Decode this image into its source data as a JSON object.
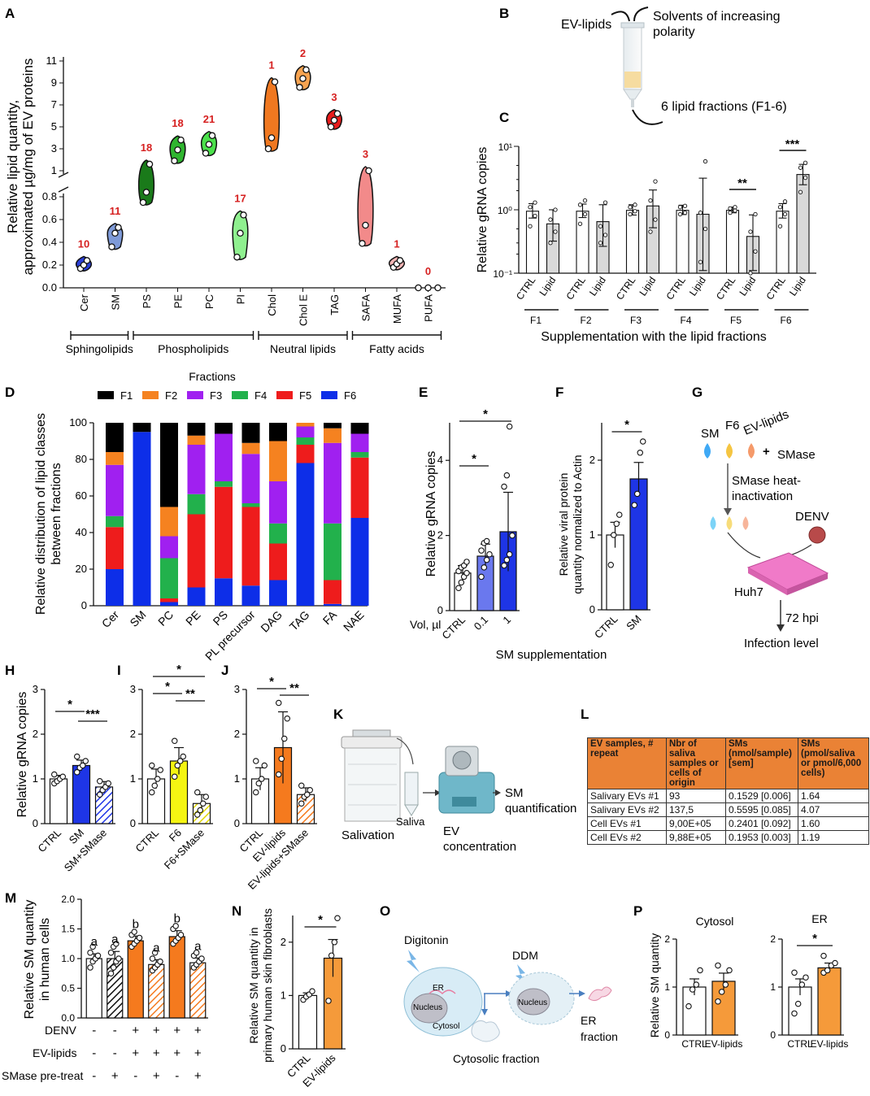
{
  "panel_letters": [
    "A",
    "B",
    "C",
    "D",
    "E",
    "F",
    "G",
    "H",
    "I",
    "J",
    "K",
    "L",
    "M",
    "N",
    "O",
    "P"
  ],
  "colors": {
    "F1": "#000000",
    "F2": "#f58220",
    "F3": "#a020f0",
    "F4": "#22b14c",
    "F5": "#ee1c1c",
    "F6": "#0d2ee8",
    "ctrl": "#ffffff",
    "sm": "#1e35e6",
    "f6": "#f5f512",
    "evlipids": "#f57a1e",
    "grey": "#d9d9d9"
  },
  "panelA": {
    "ylabel": "Relative lipid quantity, approximated µg/mg of EV proteins",
    "yticks_low": [
      "0.0",
      "0.2",
      "0.4",
      "0.6",
      "0.8"
    ],
    "yticks_high": [
      "1",
      "3",
      "5",
      "7",
      "9",
      "11"
    ],
    "groups": [
      {
        "label": "Sphingolipids",
        "n": 2
      },
      {
        "label": "Phospholipids",
        "n": 4
      },
      {
        "label": "Neutral lipids",
        "n": 3
      },
      {
        "label": "Fatty acids",
        "n": 3
      }
    ]
  },
  "panelB": {
    "ev_lipids": "EV-lipids",
    "solvents": "Solvents of increasing polarity",
    "fractions": "6 lipid fractions (F1-6)"
  },
  "panelC": {
    "ylabel": "Relative gRNA copies",
    "yticks": [
      "10⁻¹",
      "10⁰",
      "10¹"
    ],
    "xlabel": "Supplementation with the lipid fractions",
    "bar_labels": [
      "CTRL",
      "Lipid"
    ],
    "significance": [
      {
        "fraction": "F5",
        "label": "**"
      },
      {
        "fraction": "F6",
        "label": "***"
      }
    ]
  },
  "panelD": {
    "legend_title": "Fractions",
    "ylabel": "Relative distribution of lipid classes between fractions",
    "yticks": [
      "0",
      "20",
      "40",
      "60",
      "80",
      "100"
    ]
  },
  "panelE": {
    "ylabel": "Relative gRNA copies",
    "yticks": [
      "0",
      "2",
      "4"
    ],
    "vol_label": "Vol, µl",
    "sig": [
      "*",
      "*"
    ]
  },
  "panelF": {
    "ylabel": "Relative viral protein quantity normalized to Actin",
    "yticks": [
      "0",
      "1",
      "2"
    ],
    "sig": "*"
  },
  "panelEF_caption": "SM supplementation",
  "panelG": {
    "sm": "SM",
    "f6": "F6",
    "evlipids": "EV-lipids",
    "plus": "+",
    "smase": "SMase",
    "heat": "SMase heat-inactivation",
    "denv": "DENV",
    "huh7": "Huh7",
    "hpi": "72 hpi",
    "infection": "Infection level"
  },
  "panelH": {
    "ylabel": "Relative gRNA copies",
    "yticks": [
      "0",
      "1",
      "2",
      "3"
    ],
    "sig": [
      "*",
      "***"
    ]
  },
  "panelI": {
    "yticks": [
      "0",
      "1",
      "2",
      "3"
    ],
    "sig": [
      "*",
      "*",
      "**"
    ]
  },
  "panelJ": {
    "yticks": [
      "0",
      "1",
      "2",
      "3"
    ],
    "sig": [
      "*",
      "**"
    ]
  },
  "panelK": {
    "salivation": "Salivation",
    "saliva": "Saliva",
    "ev_conc": "EV concentration",
    "smq": "SM quantification"
  },
  "panelL": {
    "headers": [
      "EV samples, # repeat",
      "Nbr of saliva samples or cells of origin",
      "SMs (nmol/sample) [sem]",
      "SMs (pmol/saliva or pmol/6,000 cells)"
    ],
    "rows": [
      [
        "Salivary EVs #1",
        "93",
        "0.1529 [0.006]",
        "1.64"
      ],
      [
        "Salivary EVs #2",
        "137,5",
        "0.5595 [0.085]",
        "4.07"
      ],
      [
        "Cell EVs #1",
        "9,00E+05",
        "0.2401 [0.092]",
        "1.60"
      ],
      [
        "Cell EVs #2",
        "9,88E+05",
        "0.1953 [0.003]",
        "1.19"
      ]
    ]
  },
  "panelM": {
    "ylabel": "Relative SM quantity in human cells",
    "yticks": [
      "0.0",
      "0.5",
      "1.0",
      "1.5",
      "2.0"
    ],
    "letters": [
      "a",
      "a",
      "b",
      "a",
      "b",
      "a"
    ],
    "row_labels": [
      "DENV",
      "EV-lipids",
      "SMase pre-treat"
    ],
    "rows": [
      [
        "-",
        "-",
        "+",
        "+",
        "+",
        "+"
      ],
      [
        "-",
        "-",
        "+",
        "+",
        "+",
        "+"
      ],
      [
        "-",
        "+",
        "-",
        "+",
        "-",
        "+"
      ]
    ]
  },
  "panelN": {
    "ylabel": "Relative SM quantity in primary human skin fibroblasts",
    "yticks": [
      "0",
      "1",
      "2"
    ],
    "sig": "*"
  },
  "panelO": {
    "digitonin": "Digitonin",
    "er": "ER",
    "nucleus": "Nucleus",
    "cytosol": "Cytosol",
    "ddm": "DDM",
    "nucleus2": "Nucleus",
    "er_fraction": "ER fraction",
    "cyto_fraction": "Cytosolic fraction"
  },
  "panelP": {
    "ylabel": "Relative SM quantity",
    "yticks": [
      "0",
      "1",
      "2"
    ],
    "title_left": "Cytosol",
    "title_right": "ER",
    "sig": "*"
  },
  "chart_data": [
    {
      "panel": "A",
      "type": "violin",
      "categories": [
        "Cer",
        "SM",
        "PS",
        "PE",
        "PC",
        "PI",
        "Chol",
        "Chol E",
        "TAG",
        "SAFA",
        "MUFA",
        "PUFA"
      ],
      "series": [
        {
          "category": "Cer",
          "points": [
            0.17,
            0.2,
            0.24
          ],
          "count": "10",
          "color": "#2b3fd6"
        },
        {
          "category": "SM",
          "points": [
            0.36,
            0.48,
            0.53
          ],
          "count": "11",
          "color": "#7e9ad8"
        },
        {
          "category": "PS",
          "points": [
            0.75,
            0.84,
            1.6
          ],
          "count": "18",
          "color": "#1a7a1a"
        },
        {
          "category": "PE",
          "points": [
            1.9,
            2.9,
            3.8
          ],
          "count": "18",
          "color": "#2fb52f"
        },
        {
          "category": "PC",
          "points": [
            2.6,
            3.4,
            4.2
          ],
          "count": "21",
          "color": "#4be04b"
        },
        {
          "category": "PI",
          "points": [
            0.27,
            0.48,
            0.64
          ],
          "count": "17",
          "color": "#8ff08f"
        },
        {
          "category": "Chol",
          "points": [
            3.0,
            4.0,
            9.1
          ],
          "count": "1",
          "color": "#f07820"
        },
        {
          "category": "Chol E",
          "points": [
            8.6,
            9.4,
            10.2
          ],
          "count": "2",
          "color": "#f6a350"
        },
        {
          "category": "TAG",
          "points": [
            5.0,
            5.6,
            6.2
          ],
          "count": "3",
          "color": "#e81c1c"
        },
        {
          "category": "SAFA",
          "points": [
            0.39,
            0.55,
            1.0
          ],
          "count": "3",
          "color": "#f28a8a"
        },
        {
          "category": "MUFA",
          "points": [
            0.18,
            0.21,
            0.24
          ],
          "count": "1",
          "color": "#f3b5b5"
        },
        {
          "category": "PUFA",
          "points": [
            0.0,
            0.0,
            0.0
          ],
          "count": "0",
          "color": "#ffffff"
        }
      ],
      "ylabel": "Relative lipid quantity, approximated µg/mg of EV proteins",
      "axis_break": true
    },
    {
      "panel": "C",
      "type": "bar",
      "scale": "log",
      "categories": [
        "F1",
        "F2",
        "F3",
        "F4",
        "F5",
        "F6"
      ],
      "series": [
        {
          "name": "CTRL",
          "values": [
            0.95,
            0.95,
            0.98,
            0.98,
            0.98,
            0.95
          ],
          "err": [
            0.3,
            0.28,
            0.22,
            0.2,
            0.12,
            0.3
          ]
        },
        {
          "name": "Lipid",
          "values": [
            0.6,
            0.65,
            1.15,
            0.85,
            0.38,
            3.6
          ],
          "err": [
            0.4,
            0.55,
            0.9,
            2.3,
            0.45,
            1.6
          ]
        }
      ],
      "points": {
        "CTRL": [
          [
            0.55,
            0.8,
            1.1,
            1.3
          ],
          [
            0.6,
            0.85,
            1.2,
            1.4
          ],
          [
            0.85,
            0.95,
            1.1,
            1.2
          ],
          [
            0.85,
            0.9,
            1.1,
            1.15
          ],
          [
            0.9,
            0.97,
            1.05,
            1.1
          ],
          [
            0.55,
            0.85,
            1.1,
            1.35
          ]
        ],
        "Lipid": [
          [
            0.3,
            0.45,
            0.7,
            1.0
          ],
          [
            0.3,
            0.4,
            0.55,
            1.3
          ],
          [
            0.45,
            0.7,
            1.4,
            2.8
          ],
          [
            0.15,
            0.5,
            0.9,
            5.8
          ],
          [
            0.1,
            0.22,
            0.45,
            0.85
          ],
          [
            1.9,
            3.2,
            4.6,
            5.5
          ]
        ]
      },
      "ylabel": "Relative gRNA copies",
      "xlabel": "Supplementation with the lipid fractions"
    },
    {
      "panel": "D",
      "type": "stacked-bar",
      "categories": [
        "Cer",
        "SM",
        "PC",
        "PE",
        "PS",
        "PL precursor",
        "DAG",
        "TAG",
        "FA",
        "NAE"
      ],
      "series": [
        {
          "name": "F6",
          "values": [
            20,
            95,
            2,
            10,
            15,
            11,
            14,
            78,
            1,
            48
          ]
        },
        {
          "name": "F5",
          "values": [
            23,
            0,
            2,
            40,
            50,
            43,
            20,
            10,
            13,
            33
          ]
        },
        {
          "name": "F4",
          "values": [
            6,
            0,
            22,
            11,
            3,
            2,
            11,
            4,
            31,
            3
          ]
        },
        {
          "name": "F3",
          "values": [
            28,
            0,
            12,
            27,
            26,
            27,
            23,
            6,
            44,
            10
          ]
        },
        {
          "name": "F2",
          "values": [
            7,
            0,
            16,
            5,
            0,
            6,
            22,
            2,
            8,
            0
          ]
        },
        {
          "name": "F1",
          "values": [
            16,
            5,
            46,
            7,
            6,
            11,
            10,
            0,
            3,
            6
          ]
        }
      ],
      "ylabel": "Relative distribution of lipid classes between fractions",
      "ylim": [
        0,
        100
      ]
    },
    {
      "panel": "E",
      "type": "bar",
      "categories": [
        "CTRL",
        "0.1",
        "1"
      ],
      "values": [
        1.0,
        1.45,
        2.1
      ],
      "err": [
        0.2,
        0.32,
        1.05
      ],
      "points": [
        [
          0.6,
          0.75,
          0.9,
          1.0,
          1.05,
          1.15,
          1.2,
          1.3
        ],
        [
          0.9,
          1.15,
          1.35,
          1.5,
          1.6,
          1.8,
          1.85
        ],
        [
          1.2,
          1.35,
          1.5,
          2.0,
          3.3,
          3.6,
          4.9
        ]
      ],
      "colors": [
        "#ffffff",
        "#6a78ee",
        "#1e35e6"
      ],
      "ylabel": "Relative gRNA copies"
    },
    {
      "panel": "F",
      "type": "bar",
      "categories": [
        "CTRL",
        "SM"
      ],
      "values": [
        1.0,
        1.75
      ],
      "err": [
        0.17,
        0.22
      ],
      "points": [
        [
          0.6,
          1.0,
          1.15,
          1.27
        ],
        [
          1.4,
          1.55,
          2.1,
          2.25
        ]
      ],
      "colors": [
        "#ffffff",
        "#1e35e6"
      ],
      "ylabel": "Relative viral protein quantity normalized to Actin"
    },
    {
      "panel": "H",
      "type": "bar",
      "categories": [
        "CTRL",
        "SM",
        "SM+SMase"
      ],
      "values": [
        1.0,
        1.3,
        0.82
      ],
      "err": [
        0.08,
        0.12,
        0.12
      ],
      "points": [
        [
          0.9,
          0.95,
          1.0,
          1.05,
          1.1
        ],
        [
          1.15,
          1.25,
          1.3,
          1.4,
          1.5
        ],
        [
          0.65,
          0.75,
          0.82,
          0.9,
          0.95
        ]
      ],
      "colors": [
        "#ffffff",
        "#1e35e6",
        "#1e35e6"
      ],
      "hatched": [
        false,
        false,
        true
      ]
    },
    {
      "panel": "I",
      "type": "bar",
      "categories": [
        "CTRL",
        "F6",
        "F6+SMase"
      ],
      "values": [
        1.0,
        1.4,
        0.45
      ],
      "err": [
        0.22,
        0.3,
        0.2
      ],
      "points": [
        [
          0.7,
          0.85,
          1.0,
          1.2,
          1.3
        ],
        [
          1.05,
          1.3,
          1.4,
          1.5,
          1.85
        ],
        [
          0.2,
          0.3,
          0.45,
          0.6,
          0.7
        ]
      ],
      "colors": [
        "#ffffff",
        "#f5f512",
        "#f5f512"
      ],
      "hatched": [
        false,
        false,
        true
      ]
    },
    {
      "panel": "J",
      "type": "bar",
      "categories": [
        "CTRL",
        "EV-lipids",
        "EV-lipids+SMase"
      ],
      "values": [
        1.0,
        1.7,
        0.65
      ],
      "err": [
        0.25,
        0.8,
        0.15
      ],
      "points": [
        [
          0.7,
          0.9,
          1.0,
          1.3,
          1.4
        ],
        [
          1.1,
          1.45,
          1.9,
          2.35,
          2.7
        ],
        [
          0.45,
          0.6,
          0.65,
          0.75,
          0.85
        ]
      ],
      "colors": [
        "#ffffff",
        "#f57a1e",
        "#f57a1e"
      ],
      "hatched": [
        false,
        false,
        true
      ]
    },
    {
      "panel": "M",
      "type": "bar",
      "categories": [
        "1",
        "2",
        "3",
        "4",
        "5",
        "6"
      ],
      "values": [
        1.0,
        1.0,
        1.3,
        0.9,
        1.37,
        0.93
      ],
      "err": [
        0.08,
        0.12,
        0.08,
        0.08,
        0.1,
        0.08
      ],
      "points": [
        [
          0.85,
          0.95,
          1.0,
          1.05,
          1.1,
          1.2
        ],
        [
          0.75,
          0.85,
          0.95,
          1.0,
          1.1,
          1.2,
          1.25
        ],
        [
          1.2,
          1.25,
          1.3,
          1.35,
          1.4,
          1.45
        ],
        [
          0.8,
          0.85,
          0.9,
          0.95,
          1.0,
          1.1
        ],
        [
          1.25,
          1.3,
          1.35,
          1.4,
          1.5,
          1.55
        ],
        [
          0.85,
          0.9,
          0.95,
          1.0,
          1.05,
          1.1
        ]
      ],
      "colors": [
        "#ffffff",
        "#ffffff",
        "#f57a1e",
        "#f57a1e",
        "#f57a1e",
        "#f57a1e"
      ],
      "hatched": [
        false,
        true,
        false,
        true,
        false,
        true
      ],
      "ylabel": "Relative SM quantity in human cells"
    },
    {
      "panel": "N",
      "type": "bar",
      "categories": [
        "CTRL",
        "EV-lipids"
      ],
      "values": [
        1.0,
        1.7
      ],
      "err": [
        0.05,
        0.35
      ],
      "points": [
        [
          0.92,
          0.98,
          1.02,
          1.08
        ],
        [
          0.9,
          1.75,
          2.0,
          2.45
        ]
      ],
      "colors": [
        "#ffffff",
        "#f59a3a"
      ]
    },
    {
      "panel": "P",
      "type": "bar",
      "subpanel": "Cytosol",
      "categories": [
        "CTRL",
        "EV-lipids"
      ],
      "values": [
        1.0,
        1.12
      ],
      "err": [
        0.17,
        0.17
      ],
      "points": [
        [
          0.6,
          0.95,
          1.05,
          1.35
        ],
        [
          0.7,
          0.9,
          1.05,
          1.35,
          1.45
        ]
      ],
      "colors": [
        "#ffffff",
        "#f59a3a"
      ]
    },
    {
      "panel": "P",
      "type": "bar",
      "subpanel": "ER",
      "categories": [
        "CTRL",
        "EV-lipids"
      ],
      "values": [
        1.0,
        1.4
      ],
      "err": [
        0.17,
        0.1
      ],
      "points": [
        [
          0.45,
          0.65,
          1.05,
          1.2,
          1.3
        ],
        [
          1.3,
          1.35,
          1.45,
          1.5,
          1.65
        ]
      ],
      "colors": [
        "#ffffff",
        "#f59a3a"
      ]
    }
  ]
}
